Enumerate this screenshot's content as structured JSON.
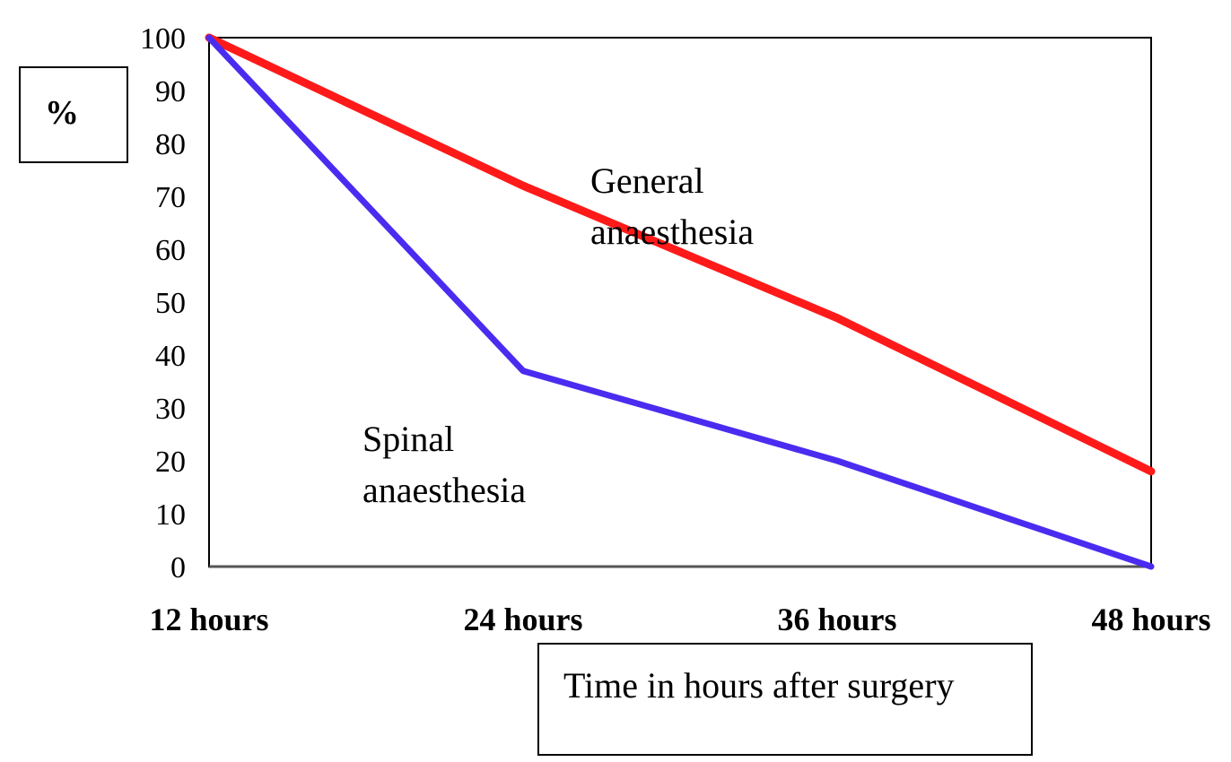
{
  "chart_data": {
    "type": "line",
    "title": "",
    "ylabel": "%",
    "xlabel": "Time in hours after surgery",
    "categories": [
      "12 hours",
      "24 hours",
      "36 hours",
      "48 hours"
    ],
    "ylim": [
      0,
      100
    ],
    "yticks": [
      0,
      10,
      20,
      30,
      40,
      50,
      60,
      70,
      80,
      90,
      100
    ],
    "grid": false,
    "series": [
      {
        "name": "General anaesthesia",
        "label_lines": [
          "General",
          "anaesthesia"
        ],
        "color": "#ff1a1a",
        "values": [
          100,
          72,
          47,
          18
        ]
      },
      {
        "name": "Spinal anaesthesia",
        "label_lines": [
          "Spinal",
          "anaesthesia"
        ],
        "color": "#4a2cf0",
        "values": [
          100,
          37,
          20,
          0
        ]
      }
    ]
  }
}
